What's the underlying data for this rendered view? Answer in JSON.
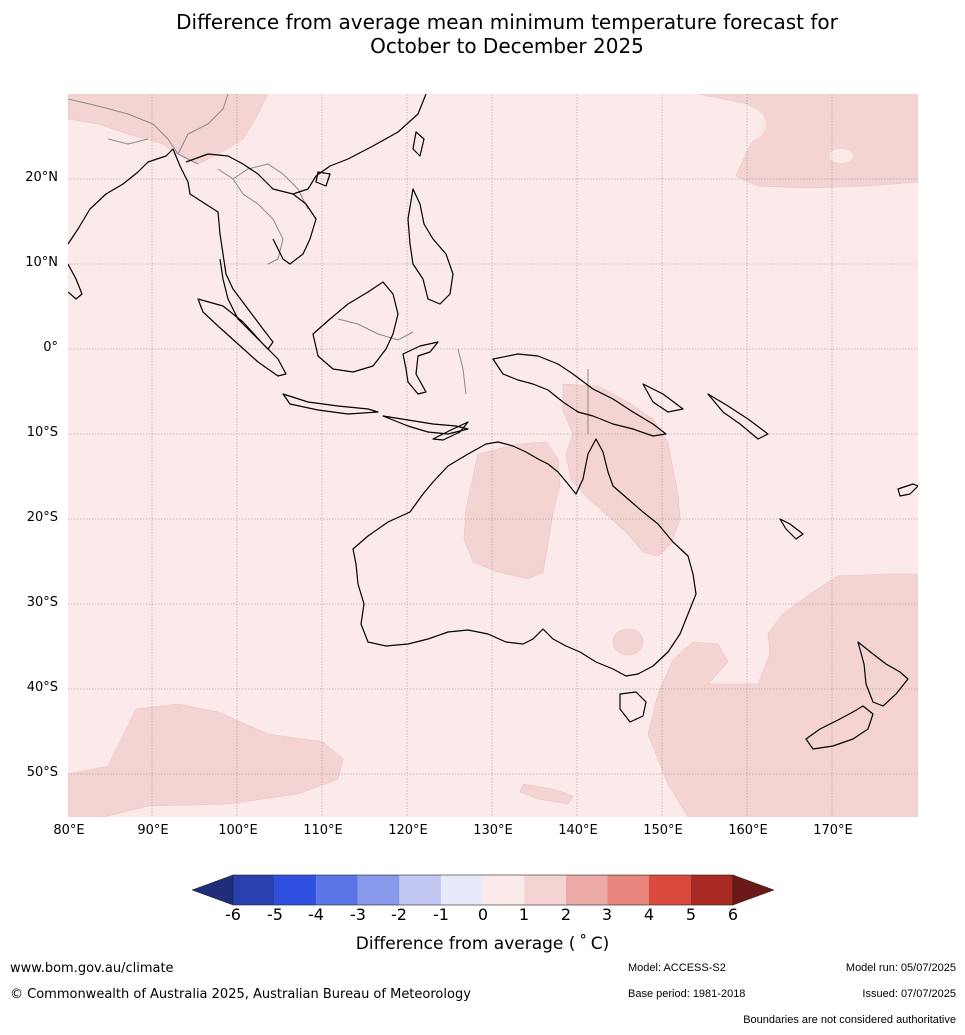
{
  "title_line1": "Difference from average mean minimum temperature forecast for",
  "title_line2": "October to December 2025",
  "map": {
    "lat_labels": [
      "20°N",
      "10°N",
      "0°",
      "10°S",
      "20°S",
      "30°S",
      "40°S",
      "50°S"
    ],
    "lon_labels": [
      "80°E",
      "90°E",
      "100°E",
      "110°E",
      "120°E",
      "130°E",
      "140°E",
      "150°E",
      "160°E",
      "170°E"
    ],
    "background_color": "#fbeae9",
    "anomaly_color": "#f4d4d3",
    "coast_color": "#000000",
    "border_color": "#888888",
    "grid_color": "#777777"
  },
  "colorbar": {
    "ticks": [
      "-6",
      "-5",
      "-4",
      "-3",
      "-2",
      "-1",
      "0",
      "1",
      "2",
      "3",
      "4",
      "5",
      "6"
    ],
    "colors": [
      "#1f2d7a",
      "#283fae",
      "#2f4fe0",
      "#5a74e6",
      "#8899ec",
      "#c2c8f2",
      "#e8eafa",
      "#fbeae9",
      "#f4d4d3",
      "#ebaaa5",
      "#e7847c",
      "#dc4a3e",
      "#a82a22",
      "#6b1a18"
    ],
    "label": "Difference from average ( ˚ C)"
  },
  "footer": {
    "website": "www.bom.gov.au/climate",
    "copyright": "© Commonwealth of Australia 2025, Australian Bureau of Meteorology",
    "model": "Model: ACCESS-S2",
    "model_run": "Model run: 05/07/2025",
    "base_period": "Base period: 1981-2018",
    "issued": "Issued: 07/07/2025",
    "disclaimer": "Boundaries are not considered authoritative"
  }
}
